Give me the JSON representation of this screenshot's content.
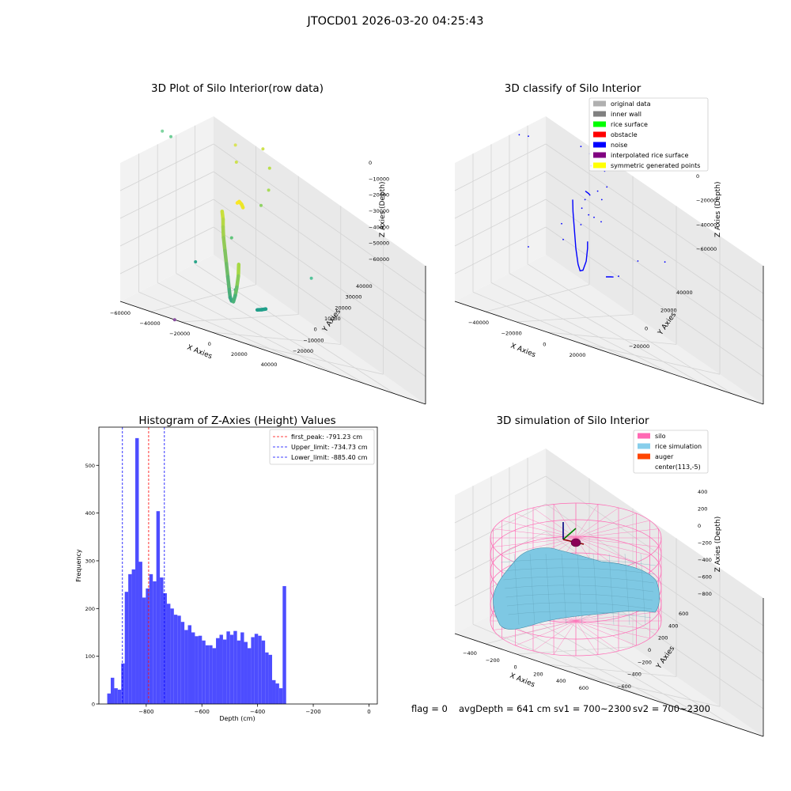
{
  "suptitle": "JTOCD01 2026-03-20 04:25:43",
  "footer": {
    "flag": "flag = 0",
    "avg_depth": "avgDepth = 641 cm",
    "sv1": "sv1 = 700~2300",
    "sv2": "sv2 = 700~2300"
  },
  "colors": {
    "hist_bar": "#4d4dff",
    "first_peak_line": "#ff0000",
    "limit_line": "#0000ff",
    "silo_wire": "#ff69b4",
    "rice_surface": "#7ec8e3",
    "noise_points": "#0000ff"
  },
  "chart_data": [
    {
      "type": "scatter",
      "panel": "raw",
      "title": "3D Plot of Silo Interior(row data)",
      "xlabel": "X Axies",
      "ylabel": "Y Axies",
      "zlabel": "Z Axies (Depth)",
      "x_ticks": [
        "−60000",
        "−40000",
        "−20000",
        "0",
        "20000",
        "40000"
      ],
      "y_ticks": [
        "−20000",
        "−10000",
        "0",
        "10000",
        "20000",
        "30000",
        "40000"
      ],
      "z_ticks": [
        "0",
        "−10000",
        "−20000",
        "−30000",
        "−40000",
        "−50000",
        "−60000"
      ],
      "points": [
        {
          "x": -52000,
          "y": 25000,
          "z": -6000,
          "color": "#7fd4a0"
        },
        {
          "x": -46000,
          "y": 22000,
          "z": -5000,
          "color": "#6fcf97"
        },
        {
          "x": -16000,
          "y": 30000,
          "z": -3000,
          "color": "#d9e35a"
        },
        {
          "x": -14000,
          "y": 27000,
          "z": -9000,
          "color": "#cde14e"
        },
        {
          "x": -3000,
          "y": 33000,
          "z": -2000,
          "color": "#cfe24f"
        },
        {
          "x": 2000,
          "y": 30000,
          "z": -8000,
          "color": "#b9de4a"
        },
        {
          "x": 3500,
          "y": 26000,
          "z": -16000,
          "color": "#a8db58"
        },
        {
          "x": 1500,
          "y": 22000,
          "z": -22000,
          "color": "#8fd364"
        },
        {
          "x": 38000,
          "y": 2000,
          "z": -34000,
          "color": "#54c39a"
        },
        {
          "x": -18000,
          "y": -8000,
          "z": -40000,
          "color": "#2aa58a"
        },
        {
          "x": 6000,
          "y": -14000,
          "z": -42000,
          "color": "#3ab38f"
        },
        {
          "x": -2000,
          "y": -2000,
          "z": -26000,
          "color": "#61c57b"
        },
        {
          "x": -22000,
          "y": -22000,
          "z": -62000,
          "color": "#8a4fa0"
        }
      ],
      "curves": [
        {
          "name": "",
          "points": [
            [
              -12000,
              8000,
              -22000
            ],
            [
              -11000,
              7000,
              -25000
            ],
            [
              -10500,
              6000,
              -28000
            ],
            [
              -9500,
              4500,
              -32000
            ],
            [
              -8000,
              3000,
              -37000
            ],
            [
              -6500,
              1500,
              -42000
            ],
            [
              -5000,
              0,
              -47000
            ],
            [
              -3500,
              -1500,
              -52000
            ],
            [
              -2500,
              -2500,
              -55000
            ],
            [
              -1500,
              -3000,
              -56000
            ]
          ],
          "color_from": "#c8df3c",
          "color_to": "#27a08a"
        },
        {
          "name": "",
          "points": [
            [
              -6000,
              12000,
              -18000
            ],
            [
              -5000,
              12000,
              -17000
            ],
            [
              -3500,
              11500,
              -17500
            ],
            [
              -2500,
              11000,
              -18500
            ]
          ],
          "color_from": "#fde725",
          "color_to": "#e4e52a"
        },
        {
          "name": "",
          "points": [
            [
              1500,
              -1500,
              -38000
            ],
            [
              1800,
              -2500,
              -43000
            ],
            [
              1500,
              -3500,
              -48000
            ],
            [
              900,
              -4000,
              -52000
            ],
            [
              200,
              -4500,
              -55000
            ]
          ],
          "color_from": "#a6d845",
          "color_to": "#2ca58b"
        },
        {
          "name": "",
          "points": [
            [
              16000,
              -11000,
              -50000
            ],
            [
              18500,
              -11000,
              -49000
            ],
            [
              20500,
              -11000,
              -48000
            ]
          ],
          "color_from": "#1f9e89",
          "color_to": "#21a08a"
        }
      ]
    },
    {
      "type": "scatter",
      "panel": "classify",
      "title": "3D classify of Silo Interior",
      "xlabel": "X Axies",
      "ylabel": "Y Axies",
      "zlabel": "Z Axies (Depth)",
      "x_ticks": [
        "−40000",
        "−20000",
        "0",
        "20000"
      ],
      "y_ticks": [
        "−20000",
        "0",
        "20000",
        "40000"
      ],
      "z_ticks": [
        "0",
        "−20000",
        "−40000",
        "−60000"
      ],
      "legend": [
        {
          "label": "original data",
          "color": "#b0b0b0"
        },
        {
          "label": "inner wall",
          "color": "#808080"
        },
        {
          "label": "rice surface",
          "color": "#00ff00"
        },
        {
          "label": "obstacle",
          "color": "#ff0000"
        },
        {
          "label": "noise",
          "color": "#0000ff"
        },
        {
          "label": "interpolated rice surface",
          "color": "#800080"
        },
        {
          "label": "symmetric generated points",
          "color": "#ffff00"
        }
      ],
      "noise_points": [
        [
          -44000,
          22000,
          -3000
        ],
        [
          -40000,
          24000,
          -3500
        ],
        [
          -14000,
          28000,
          -2000
        ],
        [
          -9000,
          27000,
          -4000
        ],
        [
          -7000,
          24000,
          -9000
        ],
        [
          -3000,
          25000,
          -2000
        ],
        [
          1000,
          22000,
          -8000
        ],
        [
          3000,
          20000,
          -16000
        ],
        [
          -1000,
          18000,
          -19000
        ],
        [
          2000,
          16000,
          -22000
        ],
        [
          -6000,
          14000,
          -24000
        ],
        [
          -15000,
          6000,
          -38000
        ],
        [
          5000,
          8000,
          -30000
        ],
        [
          26000,
          4000,
          -44000
        ],
        [
          -10000,
          -4000,
          -40000
        ],
        [
          20000,
          -6000,
          -50000
        ],
        [
          -30000,
          0,
          -55000
        ],
        [
          -6000,
          10000,
          -27000
        ],
        [
          -2000,
          9000,
          -29000
        ],
        [
          0,
          11000,
          -31000
        ],
        [
          -4000,
          4000,
          -33000
        ],
        [
          44000,
          -5000,
          -32000
        ]
      ],
      "noise_curves": [
        [
          [
            -10000,
            8000,
            -22000
          ],
          [
            -9000,
            6000,
            -28000
          ],
          [
            -7000,
            3000,
            -37000
          ],
          [
            -5000,
            0,
            -46000
          ],
          [
            -3000,
            -2000,
            -54000
          ],
          [
            -1500,
            -3000,
            -57000
          ],
          [
            0,
            -3000,
            -56000
          ],
          [
            1500,
            -2500,
            -50000
          ],
          [
            2000,
            -2000,
            -42000
          ],
          [
            1800,
            -1500,
            -38000
          ]
        ],
        [
          [
            -5000,
            12000,
            -17000
          ],
          [
            -3000,
            11500,
            -17500
          ],
          [
            -2000,
            11000,
            -18000
          ]
        ],
        [
          [
            15000,
            -10000,
            -50000
          ],
          [
            17500,
            -10000,
            -49000
          ],
          [
            19000,
            -10000,
            -48500
          ]
        ]
      ]
    },
    {
      "type": "bar",
      "panel": "histogram",
      "title": "Histogram of Z-Axies (Height) Values",
      "xlabel": "Depth (cm)",
      "ylabel": "Frequency",
      "xlim": [
        -970,
        30
      ],
      "ylim": [
        0,
        580
      ],
      "x_ticks": [
        -800,
        -600,
        -400,
        -200,
        0
      ],
      "y_ticks": [
        0,
        100,
        200,
        300,
        400,
        500
      ],
      "bin_start": -940,
      "bin_width": 12.6,
      "values": [
        22,
        55,
        33,
        30,
        85,
        235,
        272,
        282,
        557,
        298,
        223,
        242,
        272,
        257,
        404,
        265,
        232,
        210,
        200,
        187,
        185,
        172,
        155,
        165,
        150,
        142,
        143,
        133,
        123,
        123,
        117,
        138,
        145,
        135,
        152,
        145,
        153,
        133,
        150,
        130,
        117,
        140,
        147,
        143,
        133,
        108,
        103,
        50,
        43,
        33,
        247
      ],
      "lines": [
        {
          "label": "first_peak: -791.23 cm",
          "x": -791.23,
          "color": "#ff0000"
        },
        {
          "label": "Upper_limit: -734.73 cm",
          "x": -734.73,
          "color": "#0000ff"
        },
        {
          "label": "Lower_limit: -885.40 cm",
          "x": -885.4,
          "color": "#0000ff"
        }
      ]
    },
    {
      "type": "surface",
      "panel": "simulation",
      "title": "3D simulation of Silo Interior",
      "xlabel": "X Axies",
      "ylabel": "Y Axies",
      "zlabel": "Z Axies (Depth)",
      "x_ticks": [
        "−400",
        "−200",
        "0",
        "200",
        "400",
        "600"
      ],
      "y_ticks": [
        "−600",
        "−400",
        "−200",
        "0",
        "200",
        "400",
        "600"
      ],
      "z_ticks": [
        "400",
        "200",
        "0",
        "−200",
        "−400",
        "−600",
        "−800"
      ],
      "legend": [
        {
          "label": "silo",
          "color": "#ff69b4"
        },
        {
          "label": "rice simulation",
          "color": "#87ceeb"
        },
        {
          "label": "auger",
          "color": "#ff4500"
        },
        {
          "label": "center(113,-5)",
          "color": ""
        }
      ]
    }
  ]
}
